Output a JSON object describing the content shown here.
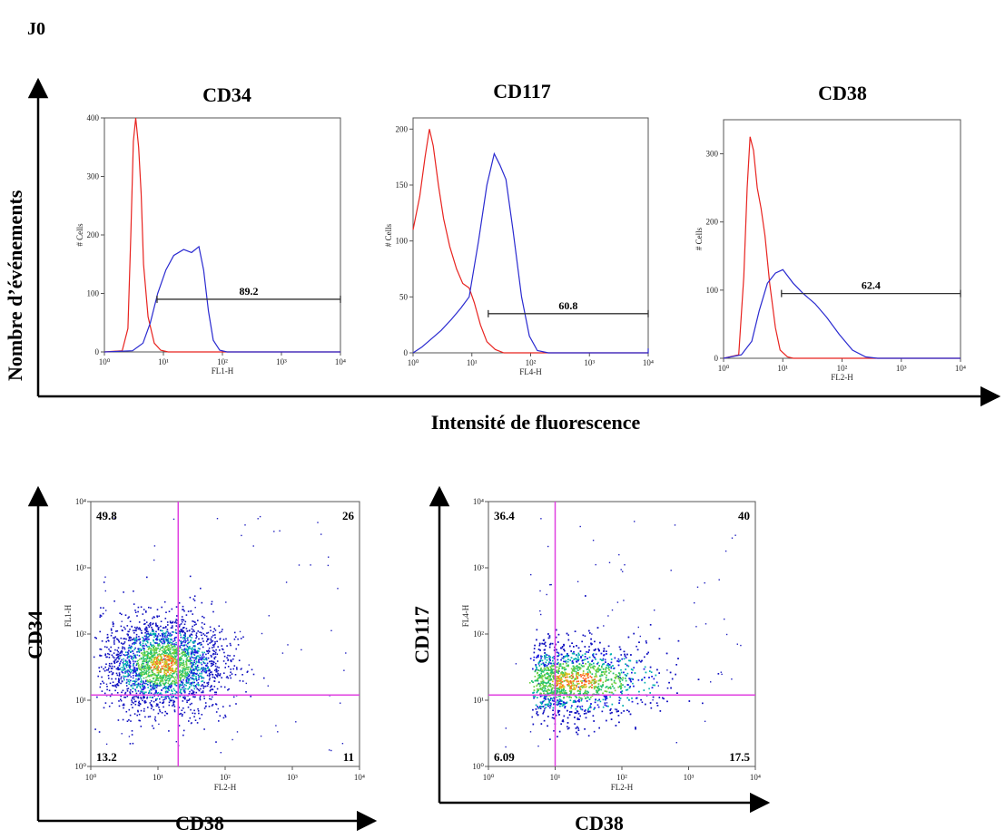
{
  "figure": {
    "panel_label": "J0",
    "top_ylabel": "Nombre d’événements",
    "top_xlabel": "Intensité de fluorescence"
  },
  "colors": {
    "isotype": "#e8231f",
    "stained": "#2a2ad0",
    "quadrant": "#e040e0",
    "gate": "#333333"
  },
  "chart_data": [
    {
      "type": "line",
      "title": "CD34",
      "xlabel": "FL1-H",
      "ylabel": "# Cells",
      "xscale": "log",
      "xlim": [
        1,
        10000
      ],
      "ylim": [
        0,
        400
      ],
      "yticks": [
        0,
        100,
        200,
        300,
        400
      ],
      "xticks": [
        "10⁰",
        "10¹",
        "10²",
        "10³",
        "10⁴"
      ],
      "series": [
        {
          "points": [
            [
              1,
              0
            ],
            [
              2,
              2
            ],
            [
              2.5,
              40
            ],
            [
              2.8,
              200
            ],
            [
              3.1,
              360
            ],
            [
              3.4,
              400
            ],
            [
              3.8,
              350
            ],
            [
              4.2,
              270
            ],
            [
              4.6,
              150
            ],
            [
              5.5,
              60
            ],
            [
              7,
              15
            ],
            [
              9,
              3
            ],
            [
              12,
              0
            ],
            [
              10000,
              0
            ]
          ]
        },
        {
          "points": [
            [
              1,
              0
            ],
            [
              3,
              2
            ],
            [
              4.5,
              15
            ],
            [
              6,
              50
            ],
            [
              8,
              100
            ],
            [
              11,
              140
            ],
            [
              15,
              165
            ],
            [
              22,
              175
            ],
            [
              30,
              170
            ],
            [
              40,
              180
            ],
            [
              48,
              140
            ],
            [
              58,
              70
            ],
            [
              70,
              20
            ],
            [
              90,
              3
            ],
            [
              120,
              0
            ],
            [
              10000,
              0
            ]
          ]
        }
      ],
      "gate": {
        "label": "89.2",
        "x": [
          7.8,
          10000
        ],
        "y": 90
      }
    },
    {
      "type": "line",
      "title": "CD117",
      "xlabel": "FL4-H",
      "ylabel": "# Cells",
      "xscale": "log",
      "xlim": [
        1,
        10000
      ],
      "ylim": [
        0,
        210
      ],
      "yticks": [
        0,
        50,
        100,
        150,
        200
      ],
      "xticks": [
        "10⁰",
        "10¹",
        "10²",
        "10³",
        "10⁴"
      ],
      "series": [
        {
          "points": [
            [
              1,
              110
            ],
            [
              1.3,
              140
            ],
            [
              1.6,
              175
            ],
            [
              1.9,
              200
            ],
            [
              2.2,
              185
            ],
            [
              2.7,
              150
            ],
            [
              3.3,
              120
            ],
            [
              4.2,
              95
            ],
            [
              5.5,
              75
            ],
            [
              7,
              62
            ],
            [
              9,
              58
            ],
            [
              11,
              45
            ],
            [
              14,
              25
            ],
            [
              18,
              10
            ],
            [
              25,
              3
            ],
            [
              35,
              0
            ],
            [
              10000,
              0
            ]
          ]
        },
        {
          "points": [
            [
              1,
              0
            ],
            [
              1.4,
              5
            ],
            [
              2,
              12
            ],
            [
              3,
              20
            ],
            [
              4.5,
              30
            ],
            [
              6.5,
              40
            ],
            [
              9,
              50
            ],
            [
              13,
              100
            ],
            [
              18,
              150
            ],
            [
              24,
              178
            ],
            [
              30,
              168
            ],
            [
              38,
              155
            ],
            [
              50,
              110
            ],
            [
              70,
              50
            ],
            [
              95,
              15
            ],
            [
              130,
              2
            ],
            [
              200,
              0
            ],
            [
              10000,
              0
            ],
            [
              10000,
              4
            ]
          ]
        }
      ],
      "gate": {
        "label": "60.8",
        "x": [
          19,
          10000
        ],
        "y": 35
      }
    },
    {
      "type": "line",
      "title": "CD38",
      "xlabel": "FL2-H",
      "ylabel": "# Cells",
      "xscale": "log",
      "xlim": [
        1,
        10000
      ],
      "ylim": [
        0,
        350
      ],
      "yticks": [
        0,
        100,
        200,
        300
      ],
      "xticks": [
        "10⁰",
        "10¹",
        "10²",
        "10³",
        "10⁴"
      ],
      "series": [
        {
          "points": [
            [
              1,
              0
            ],
            [
              1.8,
              5
            ],
            [
              2.2,
              120
            ],
            [
              2.5,
              250
            ],
            [
              2.8,
              325
            ],
            [
              3.2,
              305
            ],
            [
              3.7,
              250
            ],
            [
              4.3,
              220
            ],
            [
              5,
              180
            ],
            [
              6,
              110
            ],
            [
              7.5,
              45
            ],
            [
              9,
              12
            ],
            [
              12,
              2
            ],
            [
              15,
              0
            ],
            [
              10000,
              0
            ]
          ]
        },
        {
          "points": [
            [
              1,
              0
            ],
            [
              2,
              5
            ],
            [
              3,
              25
            ],
            [
              4,
              70
            ],
            [
              5.5,
              110
            ],
            [
              7.5,
              125
            ],
            [
              10,
              130
            ],
            [
              15,
              110
            ],
            [
              22,
              95
            ],
            [
              35,
              80
            ],
            [
              55,
              60
            ],
            [
              90,
              35
            ],
            [
              150,
              12
            ],
            [
              250,
              2
            ],
            [
              400,
              0
            ],
            [
              10000,
              0
            ]
          ]
        }
      ],
      "gate": {
        "label": "62.4",
        "x": [
          9.5,
          10000
        ],
        "y": 95
      }
    },
    {
      "type": "scatter",
      "ylabel": "CD34",
      "xlabel": "CD38",
      "xaxis_title": "FL2-H",
      "yaxis_title": "FL1-H",
      "xscale": "log",
      "yscale": "log",
      "xlim": [
        1,
        10000
      ],
      "ylim": [
        1,
        10000
      ],
      "xticks": [
        "10⁰",
        "10¹",
        "10²",
        "10³",
        "10⁴"
      ],
      "yticks": [
        "10⁰",
        "10¹",
        "10²",
        "10³",
        "10⁴"
      ],
      "quadrant_gate": {
        "x": 20,
        "y": 12
      },
      "quadrants": {
        "top_left": "49.8",
        "top_right": "26",
        "bottom_left": "13.2",
        "bottom_right": "11"
      },
      "cluster": {
        "center": [
          12,
          35
        ],
        "spread_x": 0.45,
        "spread_y": 0.35
      }
    },
    {
      "type": "scatter",
      "ylabel": "CD117",
      "xlabel": "CD38",
      "xaxis_title": "FL2-H",
      "yaxis_title": "FL4-H",
      "xscale": "log",
      "yscale": "log",
      "xlim": [
        1,
        10000
      ],
      "ylim": [
        1,
        10000
      ],
      "xticks": [
        "10⁰",
        "10¹",
        "10²",
        "10³",
        "10⁴"
      ],
      "yticks": [
        "10⁰",
        "10¹",
        "10²",
        "10³",
        "10⁴"
      ],
      "quadrant_gate": {
        "x": 10,
        "y": 12
      },
      "quadrants": {
        "top_left": "36.4",
        "top_right": "40",
        "bottom_left": "6.09",
        "bottom_right": "17.5"
      },
      "cluster": {
        "center": [
          20,
          20
        ],
        "spread_x": 0.6,
        "spread_y": 0.3
      }
    }
  ]
}
